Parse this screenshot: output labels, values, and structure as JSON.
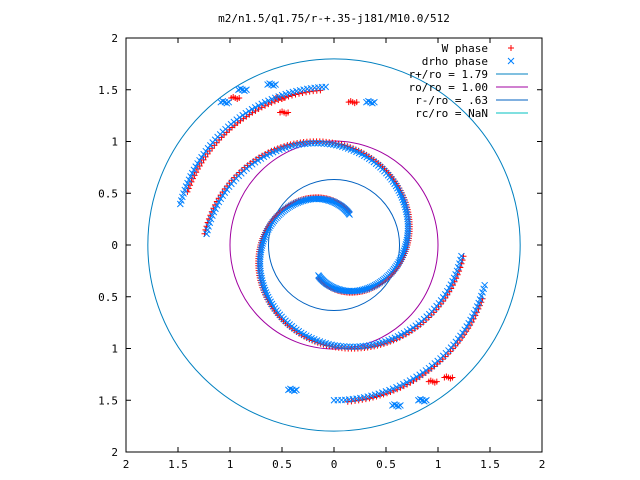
{
  "chart_data": {
    "type": "scatter",
    "title": "m2/n1.5/q1.75/r-+.35-j181/M10.0/512",
    "xlabel": "",
    "ylabel": "",
    "xlim": [
      -2,
      2
    ],
    "ylim": [
      -2,
      2
    ],
    "x_ticks": [
      "2",
      "1.5",
      "1",
      "0.5",
      "0",
      "0.5",
      "1",
      "1.5",
      "2"
    ],
    "y_ticks": [
      "2",
      "1.5",
      "1",
      "0.5",
      "0",
      "0.5",
      "1",
      "1.5",
      "2"
    ],
    "grid": false,
    "legend_position": "top-right",
    "series": [
      {
        "name": "W phase",
        "kind": "points",
        "marker": "plus",
        "color": "#ff0000",
        "spiral": {
          "r_start": 0.35,
          "r_end": 1.25,
          "theta_start_deg": 65,
          "sweep_deg": 290,
          "points_per_arm": 170,
          "arms_theta_offset_deg": [
            0,
            180
          ]
        },
        "arcs": [
          {
            "r": 1.5,
            "theta_from_deg": 95,
            "theta_to_deg": 160,
            "points": 50
          },
          {
            "r": 1.52,
            "theta_from_deg": 275,
            "theta_to_deg": 340,
            "points": 50
          }
        ],
        "clusters": [
          [
            -0.52,
            1.42
          ],
          [
            -0.48,
            1.28
          ],
          [
            0.18,
            1.38
          ],
          [
            0.95,
            -1.32
          ],
          [
            1.1,
            -1.28
          ],
          [
            -0.95,
            1.42
          ]
        ]
      },
      {
        "name": "drho phase",
        "kind": "points",
        "marker": "x",
        "color": "#0080ff",
        "spiral": {
          "r_start": 0.33,
          "r_end": 1.23,
          "theta_start_deg": 63,
          "sweep_deg": 292,
          "points_per_arm": 170,
          "arms_theta_offset_deg": [
            0,
            180
          ]
        },
        "arcs": [
          {
            "r": 1.53,
            "theta_from_deg": 93,
            "theta_to_deg": 165,
            "points": 55
          },
          {
            "r": 1.5,
            "theta_from_deg": 270,
            "theta_to_deg": 345,
            "points": 55
          }
        ],
        "clusters": [
          [
            -1.05,
            1.38
          ],
          [
            -0.88,
            1.5
          ],
          [
            -0.6,
            1.55
          ],
          [
            0.35,
            1.38
          ],
          [
            0.6,
            -1.55
          ],
          [
            0.85,
            -1.5
          ],
          [
            -0.4,
            -1.4
          ]
        ]
      },
      {
        "name": "r+/ro = 1.79",
        "kind": "circle",
        "r": 1.79,
        "color": "#0080c0"
      },
      {
        "name": "ro/ro = 1.00",
        "kind": "circle",
        "r": 1.0,
        "color": "#a000a0"
      },
      {
        "name": "r-/ro = .63",
        "kind": "circle",
        "r": 0.63,
        "color": "#0060c0"
      },
      {
        "name": "rc/ro = NaN",
        "kind": "circle",
        "r": null,
        "color": "#00c0c0"
      }
    ]
  }
}
